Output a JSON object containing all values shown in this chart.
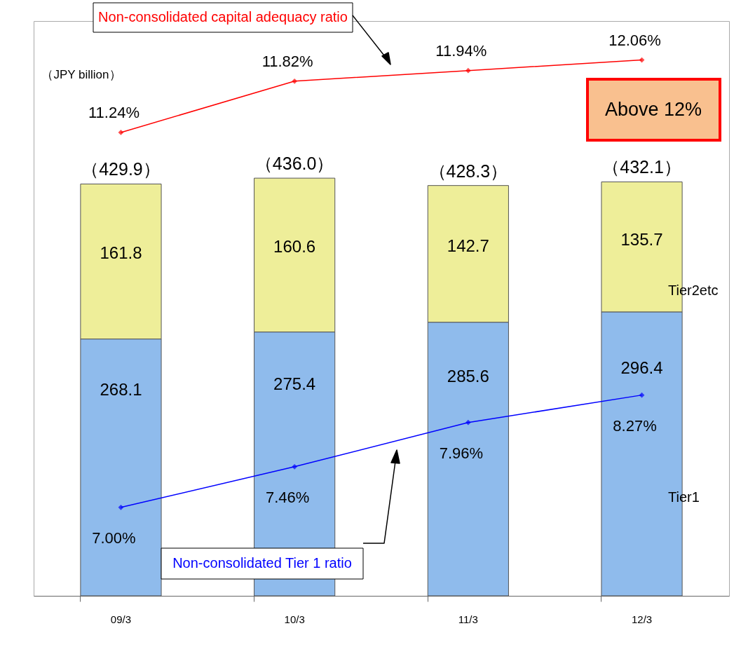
{
  "chart_data": {
    "type": "bar",
    "categories": [
      "09/3",
      "10/3",
      "11/3",
      "12/3"
    ],
    "stacked": true,
    "ylim": [
      0,
      600
    ],
    "y2lim": [
      6,
      12.5
    ],
    "tick_labels": "x",
    "grid": false,
    "legend": false,
    "data_labels": true,
    "totals": [
      "（429.9）",
      "（436.0）",
      "（428.3）",
      "（432.1）"
    ],
    "annotations": [
      "（JPY billion）",
      "Above 12%"
    ],
    "series": [
      {
        "name": "Tier1",
        "color": "#8fbbec",
        "values": [
          268.1,
          275.4,
          285.6,
          296.4
        ]
      },
      {
        "name": "Tier2etc",
        "color": "#eeee99",
        "values": [
          161.8,
          160.6,
          142.7,
          135.7
        ]
      },
      {
        "name": "Non-consolidated capital adequacy ratio",
        "type": "line",
        "axis": "y2",
        "color": "#ff0000",
        "marker": "diamond",
        "values": [
          11.24,
          11.82,
          11.94,
          12.06
        ],
        "value_labels": [
          "11.24%",
          "11.82%",
          "11.94%",
          "12.06%"
        ]
      },
      {
        "name": "Non-consolidated Tier 1 ratio",
        "type": "line",
        "axis": "y2",
        "color": "#0000ff",
        "marker": "diamond",
        "values": [
          7.0,
          7.46,
          7.96,
          8.27
        ],
        "value_labels": [
          "7.00%",
          "7.46%",
          "7.96%",
          "8.27%"
        ]
      }
    ]
  }
}
